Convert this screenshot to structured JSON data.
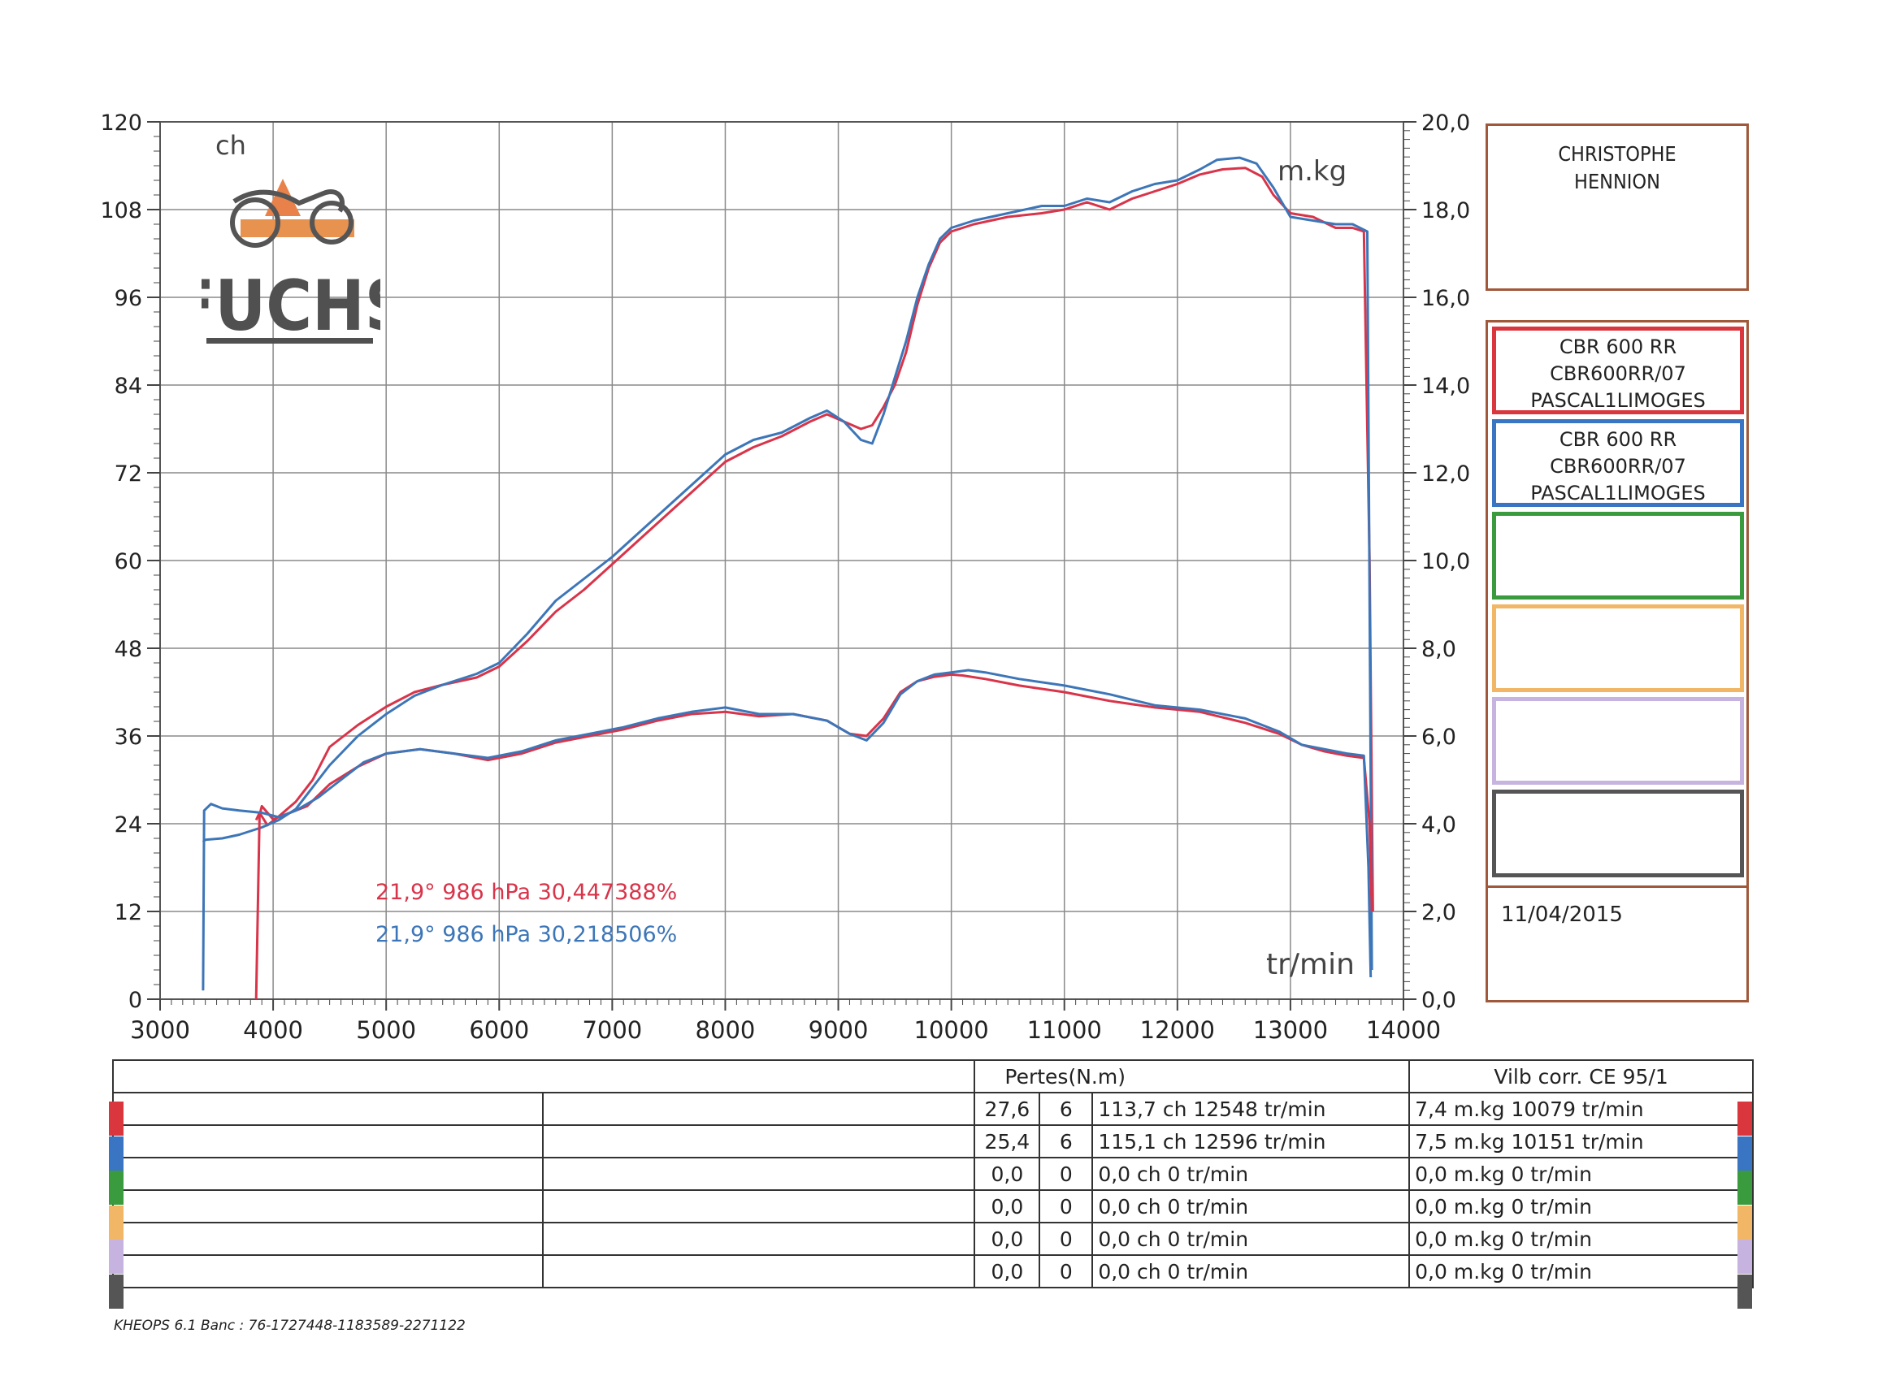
{
  "chart_data": {
    "type": "line",
    "xlabel": "tr/min",
    "ylabel_left": "ch",
    "ylabel_right": "m.kg",
    "xlim": [
      3000,
      14000
    ],
    "xticks": [
      "3000",
      "4000",
      "5000",
      "6000",
      "7000",
      "8000",
      "9000",
      "10000",
      "11000",
      "12000",
      "13000",
      "14000"
    ],
    "ylim_left": [
      0,
      120
    ],
    "yticks_left": [
      "0",
      "12",
      "24",
      "36",
      "48",
      "60",
      "72",
      "84",
      "96",
      "108",
      "120"
    ],
    "ylim_right": [
      0,
      20
    ],
    "yticks_right": [
      "0,0",
      "2,0",
      "4,0",
      "6,0",
      "8,0",
      "10,0",
      "12,0",
      "14,0",
      "16,0",
      "18,0",
      "20,0"
    ],
    "grid": true,
    "series": [
      {
        "color": "#d8344a",
        "axis": "left",
        "label": "power",
        "x": [
          3850,
          3880,
          3950,
          4050,
          4200,
          4350,
          4500,
          4750,
          5000,
          5250,
          5500,
          5800,
          6000,
          6250,
          6500,
          6750,
          7000,
          7250,
          7500,
          7750,
          8000,
          8250,
          8500,
          8750,
          8900,
          9050,
          9200,
          9300,
          9400,
          9500,
          9600,
          9700,
          9800,
          9900,
          10000,
          10200,
          10500,
          10800,
          11000,
          11200,
          11400,
          11600,
          11800,
          12000,
          12200,
          12400,
          12600,
          12750,
          12850,
          13000,
          13200,
          13400,
          13550,
          13650,
          13700,
          13730
        ],
        "y": [
          24.5,
          25.5,
          23.8,
          25.0,
          27.0,
          30.0,
          34.5,
          37.5,
          40.0,
          42.0,
          43.0,
          44.0,
          45.5,
          49.0,
          53.0,
          56.0,
          59.5,
          63.0,
          66.5,
          70.0,
          73.5,
          75.5,
          77.0,
          79.0,
          80.0,
          79.0,
          78.0,
          78.5,
          81.0,
          84.0,
          88.5,
          95.0,
          100.0,
          103.5,
          105.0,
          106.0,
          107.0,
          107.5,
          108.0,
          109.0,
          108.0,
          109.5,
          110.5,
          111.5,
          112.8,
          113.5,
          113.7,
          112.5,
          110.0,
          107.5,
          107.0,
          105.5,
          105.5,
          105.0,
          60.0,
          12.0
        ]
      },
      {
        "color": "#3d76b8",
        "axis": "left",
        "label": "power",
        "x": [
          3380,
          3400,
          3550,
          3700,
          3900,
          4050,
          4200,
          4350,
          4500,
          4750,
          5000,
          5250,
          5500,
          5800,
          6000,
          6250,
          6500,
          6750,
          7000,
          7250,
          7500,
          7750,
          8000,
          8250,
          8500,
          8750,
          8900,
          9050,
          9200,
          9300,
          9400,
          9500,
          9600,
          9700,
          9800,
          9900,
          10000,
          10200,
          10500,
          10800,
          11000,
          11200,
          11400,
          11600,
          11800,
          12000,
          12200,
          12350,
          12550,
          12700,
          12850,
          13000,
          13200,
          13400,
          13550,
          13680,
          13700,
          13720
        ],
        "y": [
          21.5,
          21.8,
          22.0,
          22.5,
          23.5,
          24.5,
          26.0,
          29.0,
          32.0,
          36.0,
          39.0,
          41.5,
          43.0,
          44.5,
          46.0,
          50.0,
          54.5,
          57.5,
          60.5,
          64.0,
          67.5,
          71.0,
          74.5,
          76.5,
          77.5,
          79.5,
          80.5,
          79.0,
          76.5,
          76.0,
          80.0,
          85.0,
          90.0,
          96.0,
          100.5,
          104.0,
          105.5,
          106.5,
          107.5,
          108.5,
          108.5,
          109.5,
          109.0,
          110.5,
          111.5,
          112.0,
          113.5,
          114.8,
          115.1,
          114.3,
          111.0,
          107.0,
          106.5,
          106.0,
          106.0,
          105.0,
          55.0,
          4.0
        ]
      },
      {
        "color": "#d8344a",
        "axis": "right",
        "label": "torque",
        "x": [
          3850,
          3880,
          3900,
          4000,
          4100,
          4300,
          4500,
          4750,
          5000,
          5300,
          5600,
          5900,
          6200,
          6500,
          6800,
          7100,
          7400,
          7700,
          8000,
          8300,
          8600,
          8900,
          9100,
          9250,
          9400,
          9550,
          9700,
          9850,
          10000,
          10100,
          10300,
          10600,
          11000,
          11400,
          11800,
          12200,
          12600,
          12900,
          13100,
          13300,
          13500,
          13650,
          13700,
          13720
        ],
        "y": [
          0.0,
          4.2,
          4.4,
          4.1,
          4.2,
          4.4,
          4.9,
          5.3,
          5.6,
          5.7,
          5.6,
          5.45,
          5.6,
          5.85,
          6.0,
          6.15,
          6.35,
          6.5,
          6.55,
          6.45,
          6.5,
          6.35,
          6.05,
          6.0,
          6.4,
          7.0,
          7.25,
          7.35,
          7.4,
          7.38,
          7.3,
          7.15,
          7.0,
          6.8,
          6.65,
          6.55,
          6.3,
          6.05,
          5.8,
          5.65,
          5.55,
          5.5,
          4.0,
          2.0
        ]
      },
      {
        "color": "#3d76b8",
        "axis": "right",
        "label": "torque",
        "x": [
          3380,
          3390,
          3450,
          3550,
          3700,
          3900,
          4050,
          4200,
          4400,
          4600,
          4800,
          5000,
          5300,
          5600,
          5900,
          6200,
          6500,
          6800,
          7100,
          7400,
          7700,
          8000,
          8300,
          8600,
          8900,
          9100,
          9250,
          9400,
          9550,
          9700,
          9850,
          10000,
          10150,
          10300,
          10600,
          11000,
          11400,
          11800,
          12200,
          12600,
          12900,
          13100,
          13300,
          13500,
          13650,
          13690,
          13710
        ],
        "y": [
          0.2,
          4.3,
          4.45,
          4.35,
          4.3,
          4.25,
          4.15,
          4.3,
          4.6,
          5.0,
          5.4,
          5.6,
          5.7,
          5.6,
          5.5,
          5.65,
          5.9,
          6.05,
          6.2,
          6.4,
          6.55,
          6.65,
          6.5,
          6.5,
          6.35,
          6.05,
          5.9,
          6.3,
          6.95,
          7.25,
          7.4,
          7.45,
          7.5,
          7.45,
          7.3,
          7.15,
          6.95,
          6.7,
          6.6,
          6.4,
          6.1,
          5.8,
          5.7,
          5.6,
          5.55,
          3.0,
          0.5
        ]
      }
    ],
    "annotations": [
      {
        "text": "21,9°  986 hPa  30,447388%",
        "color": "#d8344a"
      },
      {
        "text": "21,9°  986 hPa  30,218506%",
        "color": "#3d76b8"
      }
    ]
  },
  "owner": {
    "line1": "CHRISTOPHE",
    "line2": "HENNION"
  },
  "brand": {
    "name": "FUCHS"
  },
  "legend": [
    {
      "color": "#d9363e",
      "line1": "CBR 600 RR",
      "line2": "CBR600RR/07",
      "line3": "PASCAL1LIMOGES"
    },
    {
      "color": "#3a75c4",
      "line1": "CBR 600 RR",
      "line2": "CBR600RR/07",
      "line3": "PASCAL1LIMOGES"
    },
    {
      "color": "#3a9a3e",
      "line1": "",
      "line2": "",
      "line3": ""
    },
    {
      "color": "#f2b766",
      "line1": "",
      "line2": "",
      "line3": ""
    },
    {
      "color": "#c7b3e0",
      "line1": "",
      "line2": "",
      "line3": ""
    },
    {
      "color": "#555555",
      "line1": "",
      "line2": "",
      "line3": ""
    }
  ],
  "date": "11/04/2015",
  "table": {
    "header_losses": "Pertes(N.m)",
    "header_norm": "Vilb corr. CE 95/1",
    "rows": [
      {
        "color": "#d9363e",
        "loss": "27,6",
        "n": "6",
        "power": "113,7 ch 12548 tr/min",
        "torque": "7,4 m.kg 10079 tr/min"
      },
      {
        "color": "#3a75c4",
        "loss": "25,4",
        "n": "6",
        "power": "115,1 ch 12596 tr/min",
        "torque": "7,5 m.kg 10151 tr/min"
      },
      {
        "color": "#3a9a3e",
        "loss": "0,0",
        "n": "0",
        "power": "0,0 ch 0 tr/min",
        "torque": "0,0 m.kg 0 tr/min"
      },
      {
        "color": "#f2b766",
        "loss": "0,0",
        "n": "0",
        "power": "0,0 ch 0 tr/min",
        "torque": "0,0 m.kg 0 tr/min"
      },
      {
        "color": "#c7b3e0",
        "loss": "0,0",
        "n": "0",
        "power": "0,0 ch 0 tr/min",
        "torque": "0,0 m.kg 0 tr/min"
      },
      {
        "color": "#555555",
        "loss": "0,0",
        "n": "0",
        "power": "0,0 ch 0 tr/min",
        "torque": "0,0 m.kg 0 tr/min"
      }
    ]
  },
  "footer": "KHEOPS 6.1  Banc : 76-1727448-1183589-2271122"
}
